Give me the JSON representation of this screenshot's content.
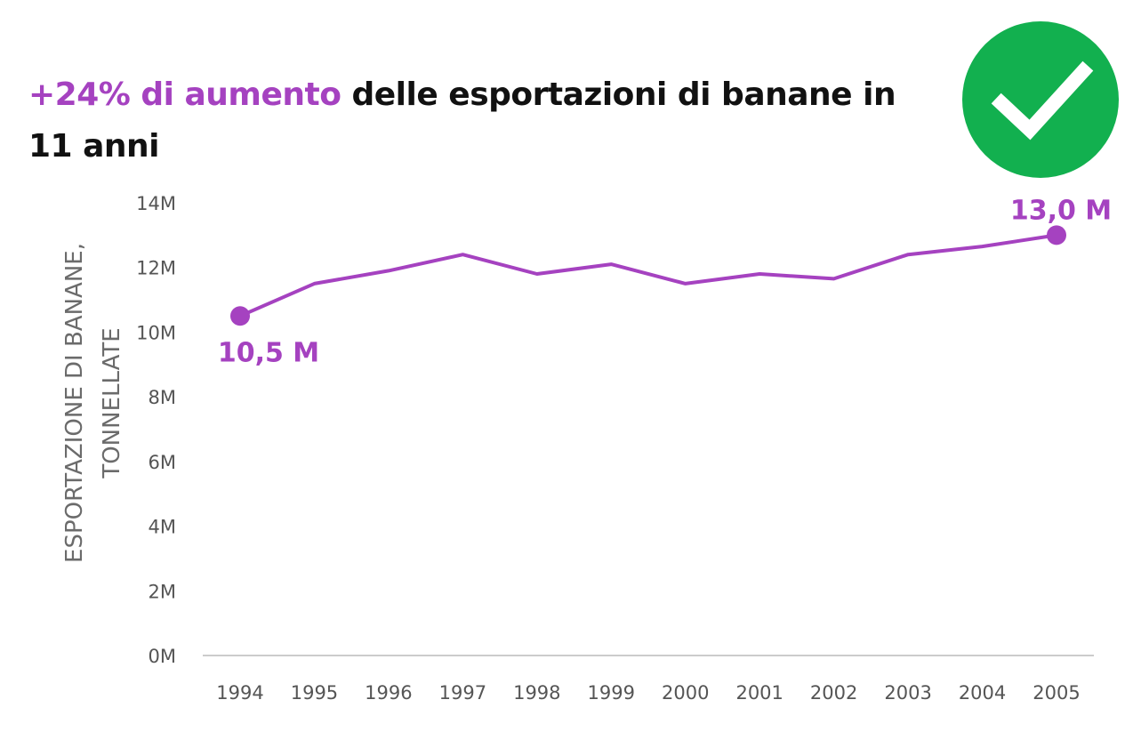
{
  "title": {
    "highlight": "+24% di aumento",
    "rest": " delle esportazioni di banane in 11 anni"
  },
  "badge": {
    "icon": "checkmark-icon",
    "color": "#12b04f"
  },
  "colors": {
    "accent": "#a542c0",
    "axis": "#cccccc",
    "tick": "#555555"
  },
  "chart_data": {
    "type": "line",
    "x": [
      "1994",
      "1995",
      "1996",
      "1997",
      "1998",
      "1999",
      "2000",
      "2001",
      "2002",
      "2003",
      "2004",
      "2005"
    ],
    "series": [
      {
        "values": [
          10.5,
          11.5,
          11.9,
          12.4,
          11.8,
          12.1,
          11.5,
          11.8,
          11.65,
          12.4,
          12.65,
          13.0
        ]
      }
    ],
    "yticks": [
      "0M",
      "2M",
      "4M",
      "6M",
      "8M",
      "10M",
      "12M",
      "14M"
    ],
    "ylim": [
      0,
      14
    ],
    "ylabel": [
      "ESPORTAZIONE DI BANANE,",
      "TONNELLATE"
    ],
    "xlabel": "",
    "annotations": [
      {
        "index": 0,
        "text": "10,5 M"
      },
      {
        "index": 11,
        "text": "13,0 M"
      }
    ],
    "grid": false,
    "legend": "none"
  }
}
